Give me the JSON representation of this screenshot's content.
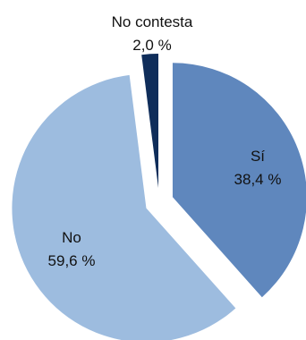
{
  "chart_data": {
    "type": "pie",
    "title": "",
    "slices": [
      {
        "label": "Sí",
        "value": 38.4,
        "value_label": "38,4 %",
        "color": "#5f87bd",
        "exploded": true
      },
      {
        "label": "No",
        "value": 59.6,
        "value_label": "59,6 %",
        "color": "#9dbcdf",
        "exploded": true
      },
      {
        "label": "No contesta",
        "value": 2.0,
        "value_label": "2,0 %",
        "color": "#0f2d5a",
        "exploded": true
      }
    ],
    "start_angle": "12 o'clock",
    "direction": "clockwise",
    "legend": "none"
  }
}
